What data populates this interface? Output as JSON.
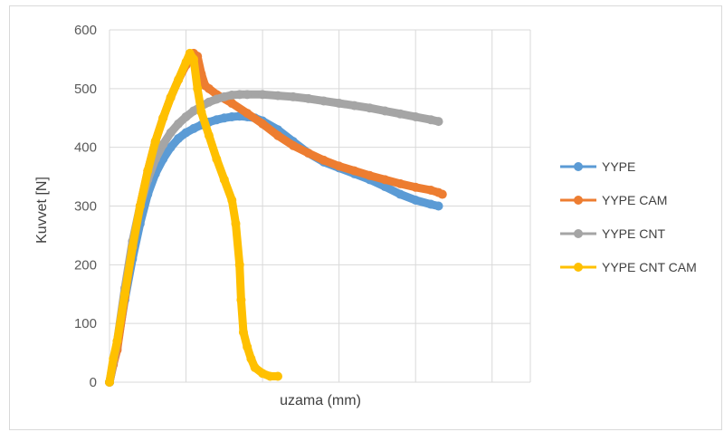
{
  "chart_data": {
    "type": "line",
    "title": "",
    "xlabel": "uzama (mm)",
    "ylabel": "Kuvvet  [N]",
    "ylim": [
      0,
      600
    ],
    "yticks": [
      "0",
      "100",
      "200",
      "300",
      "400",
      "500",
      "600"
    ],
    "xlim": [
      0,
      5.5
    ],
    "x_tick_labels_shown": false,
    "grid": true,
    "legend_position": "right",
    "series": [
      {
        "name": "YYPE",
        "color": "#5b9bd5",
        "points": [
          [
            0,
            0
          ],
          [
            0.1,
            60
          ],
          [
            0.2,
            140
          ],
          [
            0.3,
            210
          ],
          [
            0.4,
            270
          ],
          [
            0.5,
            320
          ],
          [
            0.6,
            355
          ],
          [
            0.7,
            380
          ],
          [
            0.8,
            400
          ],
          [
            0.9,
            415
          ],
          [
            1.0,
            425
          ],
          [
            1.1,
            432
          ],
          [
            1.2,
            438
          ],
          [
            1.3,
            443
          ],
          [
            1.4,
            447
          ],
          [
            1.5,
            450
          ],
          [
            1.6,
            452
          ],
          [
            1.7,
            453
          ],
          [
            1.8,
            452
          ],
          [
            1.9,
            450
          ],
          [
            2.0,
            445
          ],
          [
            2.2,
            430
          ],
          [
            2.4,
            410
          ],
          [
            2.6,
            390
          ],
          [
            2.8,
            375
          ],
          [
            3.0,
            365
          ],
          [
            3.2,
            355
          ],
          [
            3.4,
            345
          ],
          [
            3.6,
            333
          ],
          [
            3.8,
            320
          ],
          [
            4.0,
            310
          ],
          [
            4.2,
            303
          ],
          [
            4.3,
            300
          ]
        ]
      },
      {
        "name": "YYPE CAM",
        "color": "#ed7d31",
        "points": [
          [
            0,
            0
          ],
          [
            0.05,
            30
          ],
          [
            0.1,
            55
          ],
          [
            0.2,
            145
          ],
          [
            0.3,
            230
          ],
          [
            0.4,
            300
          ],
          [
            0.5,
            360
          ],
          [
            0.6,
            410
          ],
          [
            0.7,
            450
          ],
          [
            0.8,
            485
          ],
          [
            0.9,
            515
          ],
          [
            1.0,
            540
          ],
          [
            1.05,
            555
          ],
          [
            1.1,
            560
          ],
          [
            1.15,
            555
          ],
          [
            1.2,
            525
          ],
          [
            1.25,
            505
          ],
          [
            1.3,
            500
          ],
          [
            1.4,
            490
          ],
          [
            1.6,
            475
          ],
          [
            1.8,
            458
          ],
          [
            2.0,
            440
          ],
          [
            2.2,
            420
          ],
          [
            2.4,
            403
          ],
          [
            2.6,
            390
          ],
          [
            2.8,
            378
          ],
          [
            3.0,
            368
          ],
          [
            3.2,
            360
          ],
          [
            3.4,
            352
          ],
          [
            3.6,
            345
          ],
          [
            3.8,
            338
          ],
          [
            4.0,
            332
          ],
          [
            4.2,
            327
          ],
          [
            4.3,
            323
          ],
          [
            4.35,
            320
          ]
        ]
      },
      {
        "name": "YYPE CNT",
        "color": "#a5a5a5",
        "points": [
          [
            0,
            0
          ],
          [
            0.1,
            70
          ],
          [
            0.2,
            160
          ],
          [
            0.3,
            240
          ],
          [
            0.4,
            300
          ],
          [
            0.5,
            345
          ],
          [
            0.6,
            380
          ],
          [
            0.7,
            405
          ],
          [
            0.8,
            425
          ],
          [
            0.9,
            440
          ],
          [
            1.0,
            452
          ],
          [
            1.1,
            462
          ],
          [
            1.2,
            470
          ],
          [
            1.3,
            477
          ],
          [
            1.4,
            482
          ],
          [
            1.5,
            486
          ],
          [
            1.6,
            489
          ],
          [
            1.7,
            490
          ],
          [
            1.8,
            490
          ],
          [
            2.0,
            490
          ],
          [
            2.2,
            488
          ],
          [
            2.4,
            486
          ],
          [
            2.6,
            483
          ],
          [
            2.8,
            479
          ],
          [
            3.0,
            475
          ],
          [
            3.2,
            471
          ],
          [
            3.4,
            467
          ],
          [
            3.6,
            462
          ],
          [
            3.8,
            457
          ],
          [
            4.0,
            452
          ],
          [
            4.2,
            447
          ],
          [
            4.3,
            444
          ]
        ]
      },
      {
        "name": "YYPE CNT CAM",
        "color": "#ffc000",
        "points": [
          [
            0,
            0
          ],
          [
            0.05,
            40
          ],
          [
            0.1,
            70
          ],
          [
            0.2,
            150
          ],
          [
            0.3,
            230
          ],
          [
            0.4,
            300
          ],
          [
            0.5,
            360
          ],
          [
            0.6,
            410
          ],
          [
            0.7,
            450
          ],
          [
            0.8,
            485
          ],
          [
            0.9,
            515
          ],
          [
            1.0,
            545
          ],
          [
            1.05,
            560
          ],
          [
            1.1,
            550
          ],
          [
            1.15,
            500
          ],
          [
            1.2,
            460
          ],
          [
            1.3,
            420
          ],
          [
            1.4,
            380
          ],
          [
            1.5,
            345
          ],
          [
            1.6,
            310
          ],
          [
            1.65,
            270
          ],
          [
            1.7,
            200
          ],
          [
            1.72,
            140
          ],
          [
            1.75,
            85
          ],
          [
            1.8,
            60
          ],
          [
            1.85,
            40
          ],
          [
            1.9,
            25
          ],
          [
            2.0,
            15
          ],
          [
            2.1,
            10
          ],
          [
            2.2,
            10
          ]
        ]
      }
    ]
  }
}
